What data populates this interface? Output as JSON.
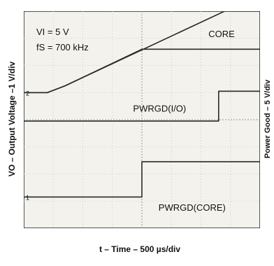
{
  "chart_data": {
    "type": "line",
    "title": "",
    "xlabel": "t – Time – 500 µs/div",
    "ylabel_left": "VO – Output Voltage –1 V/div",
    "ylabel_right": "Power Good – 5 V/div",
    "x_unit": "div",
    "y_unit": "div",
    "xlim": [
      0,
      8
    ],
    "ylim": [
      0,
      8
    ],
    "conditions": {
      "vi": "VI = 5 V",
      "fs": "fS = 700 kHz"
    },
    "channel_markers": [
      {
        "label": "2",
        "y": 5.0
      },
      {
        "label": "1",
        "y": 1.15
      }
    ],
    "series": [
      {
        "name": "I/O",
        "x": [
          0,
          0.8,
          1.4,
          6.8,
          8.0
        ],
        "y": [
          5.0,
          5.0,
          5.25,
          8.0,
          8.0
        ],
        "label_pos": [
          6.8,
          8.35
        ]
      },
      {
        "name": "CORE",
        "x": [
          0,
          0.8,
          1.4,
          4.0,
          8.0
        ],
        "y": [
          5.0,
          5.0,
          5.25,
          6.6,
          6.6
        ],
        "label_pos": [
          6.7,
          7.05
        ]
      },
      {
        "name": "PWRGD(I/O)",
        "x": [
          0,
          6.6,
          6.6,
          8.0
        ],
        "y": [
          3.95,
          3.95,
          5.05,
          5.05
        ],
        "label_pos": [
          4.6,
          4.3
        ]
      },
      {
        "name": "PWRGD(CORE)",
        "x": [
          0,
          4.0,
          4.0,
          8.0
        ],
        "y": [
          1.15,
          1.15,
          2.45,
          2.45
        ],
        "label_pos": [
          5.7,
          0.65
        ]
      }
    ],
    "grid": true
  }
}
